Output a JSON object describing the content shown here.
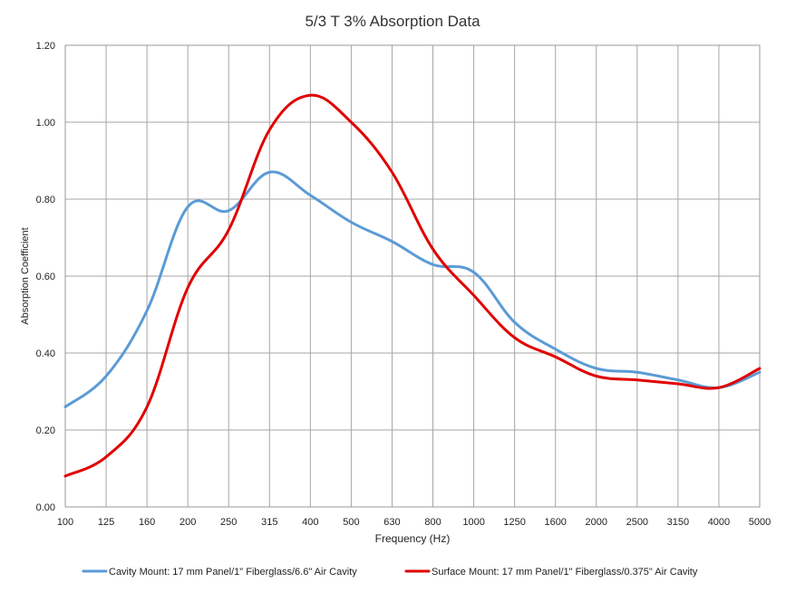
{
  "chart_data": {
    "type": "line",
    "title": "5/3 T 3% Absorption Data",
    "xlabel": "Frequency (Hz)",
    "ylabel": "Absorption Coefficient",
    "categories": [
      "100",
      "125",
      "160",
      "200",
      "250",
      "315",
      "400",
      "500",
      "630",
      "800",
      "1000",
      "1250",
      "1600",
      "2000",
      "2500",
      "3150",
      "4000",
      "5000"
    ],
    "ylim": [
      0,
      1.2
    ],
    "yticks": [
      "0.00",
      "0.20",
      "0.40",
      "0.60",
      "0.80",
      "1.00",
      "1.20"
    ],
    "grid": true,
    "legend_position": "bottom",
    "series": [
      {
        "name": "Cavity Mount: 17 mm Panel/1\" Fiberglass/6.6\" Air Cavity",
        "color": "#5b9bd5",
        "values": [
          0.26,
          0.34,
          0.51,
          0.78,
          0.77,
          0.87,
          0.81,
          0.74,
          0.69,
          0.63,
          0.61,
          0.48,
          0.41,
          0.36,
          0.35,
          0.33,
          0.31,
          0.35
        ]
      },
      {
        "name": "Surface Mount: 17 mm Panel/1\" Fiberglass/0.375\" Air Cavity",
        "color": "#e00000",
        "values": [
          0.08,
          0.13,
          0.26,
          0.57,
          0.72,
          0.98,
          1.07,
          1.0,
          0.87,
          0.67,
          0.55,
          0.44,
          0.39,
          0.34,
          0.33,
          0.32,
          0.31,
          0.36
        ]
      }
    ]
  }
}
